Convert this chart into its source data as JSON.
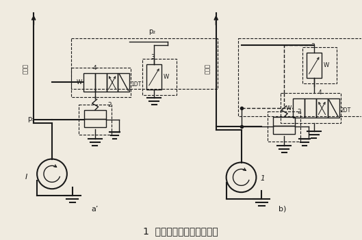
{
  "background_color": "#f0ebe0",
  "title": "1  双溢流阀式二级调压回路",
  "title_fontsize": 10,
  "label_a": "a’",
  "label_b": "b)",
  "fig_width": 5.29,
  "fig_height": 3.51,
  "dpi": 100
}
